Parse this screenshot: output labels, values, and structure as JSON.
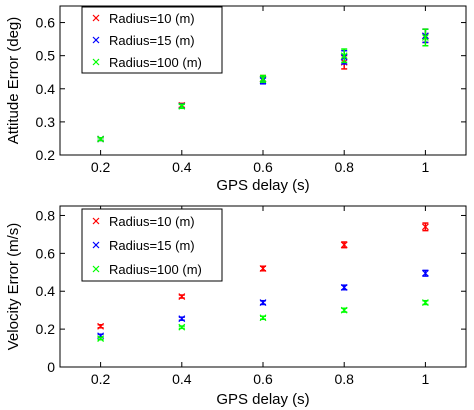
{
  "colors": {
    "axis": "#000000",
    "background": "#ffffff"
  },
  "chart_data": [
    {
      "type": "scatter",
      "title": "",
      "xlabel": "GPS delay (s)",
      "ylabel": "Attitude Error (deg)",
      "xlim": [
        0.1,
        1.1
      ],
      "ylim": [
        0.2,
        0.65
      ],
      "xticks": [
        0.2,
        0.4,
        0.6,
        0.8,
        1.0
      ],
      "xtick_labels": [
        "0.2",
        "0.4",
        "0.6",
        "0.8",
        "1"
      ],
      "yticks": [
        0.2,
        0.3,
        0.4,
        0.5,
        0.6
      ],
      "ytick_labels": [
        "0.2",
        "0.3",
        "0.4",
        "0.5",
        "0.6"
      ],
      "grid": false,
      "legend_position": "top-left",
      "error_bars": true,
      "x": [
        0.2,
        0.4,
        0.6,
        0.8,
        1.0
      ],
      "series": [
        {
          "name": "Radius=10 (m)",
          "color": "#ff0000",
          "values": [
            0.248,
            0.35,
            0.43,
            0.48,
            0.56
          ],
          "errors": [
            0.004,
            0.006,
            0.01,
            0.02,
            0.02
          ]
        },
        {
          "name": "Radius=15 (m)",
          "color": "#0000ff",
          "values": [
            0.248,
            0.348,
            0.425,
            0.495,
            0.56
          ],
          "errors": [
            0.004,
            0.006,
            0.01,
            0.02,
            0.02
          ]
        },
        {
          "name": "Radius=100 (m)",
          "color": "#00ff00",
          "values": [
            0.248,
            0.347,
            0.43,
            0.5,
            0.555
          ],
          "errors": [
            0.004,
            0.006,
            0.01,
            0.02,
            0.025
          ]
        }
      ]
    },
    {
      "type": "scatter",
      "title": "",
      "xlabel": "GPS delay (s)",
      "ylabel": "Velocity Error (m/s)",
      "xlim": [
        0.1,
        1.1
      ],
      "ylim": [
        0.0,
        0.85
      ],
      "xticks": [
        0.2,
        0.4,
        0.6,
        0.8,
        1.0
      ],
      "xtick_labels": [
        "0.2",
        "0.4",
        "0.6",
        "0.8",
        "1"
      ],
      "yticks": [
        0.0,
        0.2,
        0.4,
        0.6,
        0.8
      ],
      "ytick_labels": [
        "0",
        "0.2",
        "0.4",
        "0.6",
        "0.8"
      ],
      "grid": false,
      "legend_position": "top-left",
      "error_bars": true,
      "x": [
        0.2,
        0.4,
        0.6,
        0.8,
        1.0
      ],
      "series": [
        {
          "name": "Radius=10 (m)",
          "color": "#ff0000",
          "values": [
            0.215,
            0.372,
            0.52,
            0.645,
            0.74
          ],
          "errors": [
            0.008,
            0.008,
            0.012,
            0.015,
            0.02
          ]
        },
        {
          "name": "Radius=15 (m)",
          "color": "#0000ff",
          "values": [
            0.165,
            0.255,
            0.34,
            0.42,
            0.495
          ],
          "errors": [
            0.008,
            0.008,
            0.01,
            0.012,
            0.015
          ]
        },
        {
          "name": "Radius=100 (m)",
          "color": "#00ff00",
          "values": [
            0.15,
            0.21,
            0.26,
            0.3,
            0.34
          ],
          "errors": [
            0.006,
            0.006,
            0.008,
            0.01,
            0.01
          ]
        }
      ]
    }
  ]
}
